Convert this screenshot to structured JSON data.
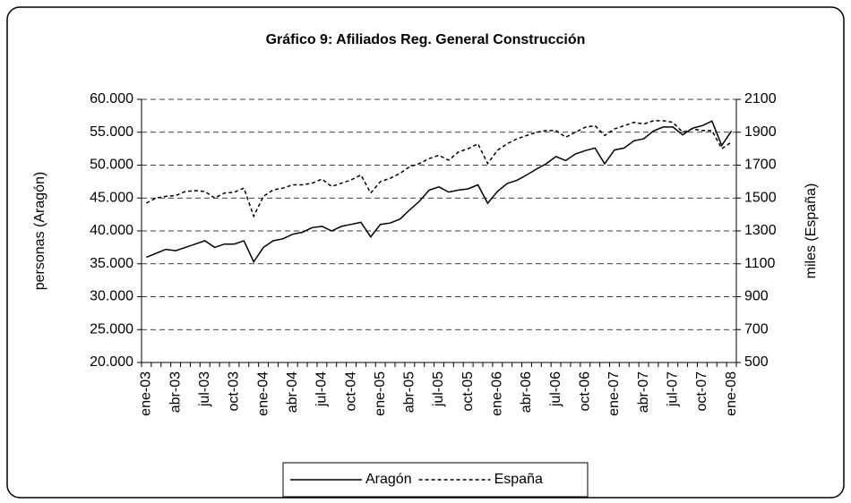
{
  "chart_data": {
    "type": "line",
    "title": "Gráfico 9: Afiliados Reg. General Construcción",
    "y_label": "personas (Aragón)",
    "y2_label": "miles (España)",
    "categories": [
      "ene-03",
      null,
      null,
      "abr-03",
      null,
      null,
      "jul-03",
      null,
      null,
      "oct-03",
      null,
      null,
      "ene-04",
      null,
      null,
      "abr-04",
      null,
      null,
      "jul-04",
      null,
      null,
      "oct-04",
      null,
      null,
      "ene-05",
      null,
      null,
      "abr-05",
      null,
      null,
      "jul-05",
      null,
      null,
      "oct-05",
      null,
      null,
      "ene-06",
      null,
      null,
      "abr-06",
      null,
      null,
      "jul-06",
      null,
      null,
      "oct-06",
      null,
      null,
      "ene-07",
      null,
      null,
      "abr-07",
      null,
      null,
      "jul-07",
      null,
      null,
      "oct-07",
      null,
      null,
      "ene-08"
    ],
    "series": [
      {
        "name": "Aragón",
        "color": "#000000",
        "dash": "solid",
        "values": [
          36000,
          36600,
          37200,
          37000,
          37500,
          38000,
          38500,
          37500,
          38000,
          38000,
          38500,
          35300,
          37500,
          38500,
          38800,
          39500,
          39800,
          40500,
          40700,
          40000,
          40700,
          41000,
          41300,
          39100,
          41000,
          41200,
          41800,
          43200,
          44500,
          46200,
          46700,
          45900,
          46200,
          46400,
          47000,
          44200,
          46000,
          47200,
          47700,
          48500,
          49400,
          50200,
          51300,
          50700,
          51700,
          52200,
          52600,
          50200,
          52300,
          52600,
          53700,
          54000,
          55200,
          55800,
          55800,
          54600,
          55600,
          56000,
          56700,
          53000,
          55200
        ]
      },
      {
        "name": "España",
        "color": "#000000",
        "dash": "dashed",
        "axis": "y2",
        "values": [
          1470,
          1500,
          1510,
          1515,
          1540,
          1545,
          1540,
          1500,
          1530,
          1535,
          1560,
          1390,
          1510,
          1550,
          1560,
          1580,
          1580,
          1590,
          1615,
          1570,
          1590,
          1610,
          1640,
          1530,
          1600,
          1620,
          1650,
          1690,
          1710,
          1740,
          1760,
          1730,
          1780,
          1800,
          1830,
          1710,
          1790,
          1830,
          1860,
          1880,
          1900,
          1910,
          1910,
          1870,
          1900,
          1930,
          1940,
          1880,
          1920,
          1940,
          1960,
          1950,
          1970,
          1970,
          1960,
          1900,
          1920,
          1910,
          1910,
          1800,
          1840
        ]
      }
    ],
    "ylim": [
      20000,
      60000
    ],
    "yticks": [
      {
        "value": 20000,
        "label": "20.000"
      },
      {
        "value": 25000,
        "label": "25.000"
      },
      {
        "value": 30000,
        "label": "30.000"
      },
      {
        "value": 35000,
        "label": "35.000"
      },
      {
        "value": 40000,
        "label": "40.000"
      },
      {
        "value": 45000,
        "label": "45.000"
      },
      {
        "value": 50000,
        "label": "50.000"
      },
      {
        "value": 55000,
        "label": "55.000"
      },
      {
        "value": 60000,
        "label": "60.000"
      }
    ],
    "y2lim": [
      500,
      2100
    ],
    "y2ticks": [
      500,
      700,
      900,
      1100,
      1300,
      1500,
      1700,
      1900,
      2100
    ],
    "grid": true,
    "legend": "bottom"
  }
}
